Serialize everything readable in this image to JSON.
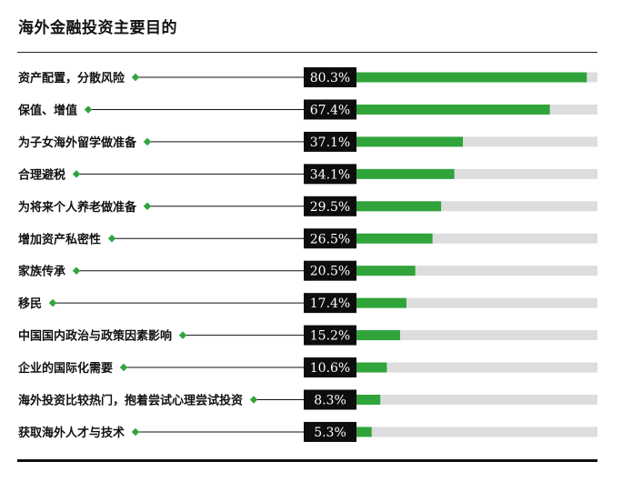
{
  "colors": {
    "bar": "#30a43b",
    "track": "#dddddd",
    "label_box": "#0d0d0d",
    "marker": "#30a43b",
    "leader": "#111111"
  },
  "chart_data": {
    "type": "bar",
    "orientation": "horizontal",
    "title": "海外金融投资主要目的",
    "categories": [
      "资产配置，分散风险",
      "保值、增值",
      "为子女海外留学做准备",
      "合理避税",
      "为将来个人养老做准备",
      "增加资产私密性",
      "家族传承",
      "移民",
      "中国国内政治与政策因素影响",
      "企业的国际化需要",
      "海外投资比较热门，抱着尝试心理尝试投资",
      "获取海外人才与技术"
    ],
    "values": [
      80.3,
      67.4,
      37.1,
      34.1,
      29.5,
      26.5,
      20.5,
      17.4,
      15.2,
      10.6,
      8.3,
      5.3
    ],
    "value_labels": [
      "80.3%",
      "67.4%",
      "37.1%",
      "34.1%",
      "29.5%",
      "26.5%",
      "20.5%",
      "17.4%",
      "15.2%",
      "10.6%",
      "8.3%",
      "5.3%"
    ],
    "xlim": [
      0,
      84
    ],
    "unit": "%",
    "grid": false,
    "legend": "none"
  }
}
